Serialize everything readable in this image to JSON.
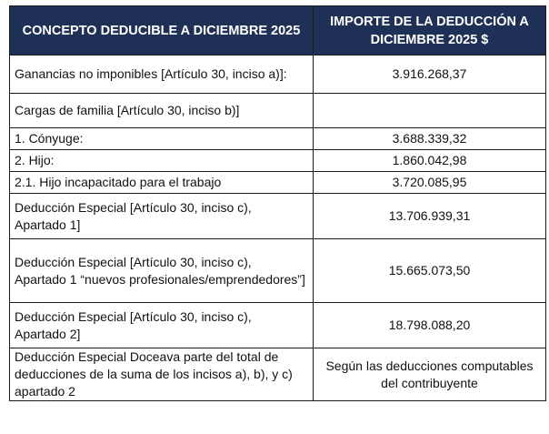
{
  "table": {
    "headers": {
      "concept": "CONCEPTO DEDUCIBLE A DICIEMBRE 2025",
      "amount": "IMPORTE DE LA DEDUCCIÓN A DICIEMBRE 2025 $"
    },
    "rows": [
      {
        "concept": "Ganancias no imponibles [Artículo 30, inciso a)]:",
        "amount": "3.916.268,37"
      },
      {
        "concept": "Cargas de familia [Artículo 30, inciso b)]",
        "amount": ""
      },
      {
        "concept": "1. Cónyuge:",
        "amount": "3.688.339,32"
      },
      {
        "concept": "2. Hijo:",
        "amount": "1.860.042,98"
      },
      {
        "concept": "2.1. Hijo incapacitado para el trabajo",
        "amount": "3.720.085,95"
      },
      {
        "concept": "Deducción Especial [Artículo 30, inciso c), Apartado 1]",
        "amount": "13.706.939,31"
      },
      {
        "concept": "Deducción Especial [Artículo 30, inciso c), Apartado 1 “nuevos profesionales/emprendedores”]",
        "amount": "15.665.073,50"
      },
      {
        "concept": "Deducción Especial [Artículo 30, inciso c), Apartado 2]",
        "amount": "18.798.088,20"
      },
      {
        "concept": "Deducción Especial Doceava parte del total de deducciones de la suma de los incisos a), b), y c) apartado 2",
        "amount": "Según las deducciones computables del contribuyente"
      }
    ]
  }
}
